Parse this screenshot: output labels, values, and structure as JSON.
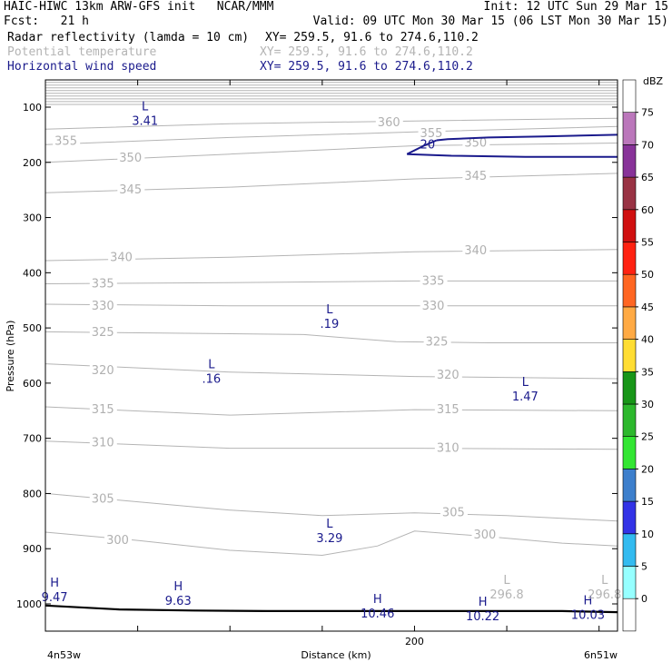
{
  "header": {
    "model": "HAIC-HIWC 13km ARW-GFS init   NCAR/MMM",
    "init": "Init: 12 UTC Sun 29 Mar 15",
    "fcst": "Fcst:   21 h",
    "valid": "Valid: 09 UTC Mon 30 Mar 15 (06 LST Mon 30 Mar 15)",
    "fields": [
      {
        "name": "Radar reflectivity (lamda = 10 cm)",
        "xy": "XY= 259.5, 91.6 to 274.6,110.2",
        "color": "#000000"
      },
      {
        "name": "Potential temperature",
        "xy": "XY= 259.5, 91.6 to 274.6,110.2",
        "color": "#b4b4b4"
      },
      {
        "name": "Horizontal wind speed",
        "xy": "XY= 259.5, 91.6 to 274.6,110.2",
        "color": "#1a1a8c"
      }
    ]
  },
  "chart_data": {
    "type": "cross-section",
    "xlabel": "Distance (km)",
    "ylabel": "Pressure (hPa)",
    "x_left_label": "4n53w",
    "x_right_label": "6n51w",
    "x_range_km": [
      0,
      310
    ],
    "x_ticks": [
      0,
      50,
      100,
      150,
      200,
      250,
      300
    ],
    "x_tick_labels": [
      {
        "x": 200,
        "label": "200"
      }
    ],
    "y_range_hPa": [
      50,
      1050
    ],
    "y_ticks": [
      100,
      200,
      300,
      400,
      500,
      600,
      700,
      800,
      900,
      1000
    ],
    "colorbar": {
      "unit": "dBZ",
      "levels": [
        0,
        5,
        10,
        15,
        20,
        25,
        30,
        35,
        40,
        45,
        50,
        55,
        60,
        65,
        70,
        75
      ],
      "colors": [
        "#ffffff",
        "#96ffff",
        "#33bbf0",
        "#3333e6",
        "#3d7fcc",
        "#33e633",
        "#2db82d",
        "#189618",
        "#ffdd33",
        "#ffaa44",
        "#ff6622",
        "#ff2211",
        "#d01010",
        "#993344",
        "#883399",
        "#bb77bb",
        "#ffffff"
      ]
    },
    "theta_contours": [
      {
        "value": 300,
        "points": [
          [
            0,
            870
          ],
          [
            50,
            885
          ],
          [
            100,
            903
          ],
          [
            150,
            912
          ],
          [
            180,
            895
          ],
          [
            200,
            868
          ],
          [
            240,
            878
          ],
          [
            280,
            890
          ],
          [
            310,
            895
          ]
        ],
        "labels": [
          {
            "x": 33,
            "p": 885
          },
          {
            "x": 232,
            "p": 875
          }
        ]
      },
      {
        "value": 305,
        "points": [
          [
            0,
            800
          ],
          [
            100,
            830
          ],
          [
            150,
            840
          ],
          [
            200,
            835
          ],
          [
            250,
            840
          ],
          [
            310,
            850
          ]
        ],
        "labels": [
          {
            "x": 25,
            "p": 810
          },
          {
            "x": 215,
            "p": 835
          }
        ]
      },
      {
        "value": 310,
        "points": [
          [
            0,
            705
          ],
          [
            100,
            718
          ],
          [
            200,
            718
          ],
          [
            310,
            720
          ]
        ],
        "labels": [
          {
            "x": 25,
            "p": 708
          },
          {
            "x": 212,
            "p": 718
          }
        ]
      },
      {
        "value": 315,
        "points": [
          [
            0,
            643
          ],
          [
            100,
            658
          ],
          [
            200,
            648
          ],
          [
            310,
            650
          ]
        ],
        "labels": [
          {
            "x": 25,
            "p": 648
          },
          {
            "x": 212,
            "p": 648
          }
        ]
      },
      {
        "value": 320,
        "points": [
          [
            0,
            565
          ],
          [
            100,
            580
          ],
          [
            200,
            588
          ],
          [
            310,
            592
          ]
        ],
        "labels": [
          {
            "x": 25,
            "p": 577
          },
          {
            "x": 212,
            "p": 585
          }
        ]
      },
      {
        "value": 325,
        "points": [
          [
            0,
            507
          ],
          [
            140,
            512
          ],
          [
            190,
            525
          ],
          [
            240,
            527
          ],
          [
            310,
            527
          ]
        ],
        "labels": [
          {
            "x": 25,
            "p": 508
          },
          {
            "x": 206,
            "p": 525
          }
        ]
      },
      {
        "value": 330,
        "points": [
          [
            0,
            457
          ],
          [
            100,
            460
          ],
          [
            200,
            460
          ],
          [
            310,
            460
          ]
        ],
        "labels": [
          {
            "x": 25,
            "p": 460
          },
          {
            "x": 204,
            "p": 460
          }
        ]
      },
      {
        "value": 335,
        "points": [
          [
            0,
            420
          ],
          [
            100,
            418
          ],
          [
            200,
            415
          ],
          [
            310,
            415
          ]
        ],
        "labels": [
          {
            "x": 25,
            "p": 420
          },
          {
            "x": 204,
            "p": 415
          }
        ]
      },
      {
        "value": 340,
        "points": [
          [
            0,
            378
          ],
          [
            100,
            372
          ],
          [
            200,
            362
          ],
          [
            310,
            358
          ]
        ],
        "labels": [
          {
            "x": 35,
            "p": 372
          },
          {
            "x": 227,
            "p": 360
          }
        ]
      },
      {
        "value": 345,
        "points": [
          [
            0,
            255
          ],
          [
            100,
            245
          ],
          [
            200,
            230
          ],
          [
            310,
            220
          ]
        ],
        "labels": [
          {
            "x": 40,
            "p": 250
          },
          {
            "x": 227,
            "p": 225
          }
        ]
      },
      {
        "value": 350,
        "points": [
          [
            0,
            200
          ],
          [
            100,
            185
          ],
          [
            200,
            170
          ],
          [
            310,
            165
          ]
        ],
        "labels": [
          {
            "x": 40,
            "p": 192
          },
          {
            "x": 227,
            "p": 165
          }
        ]
      },
      {
        "value": 355,
        "points": [
          [
            0,
            168
          ],
          [
            100,
            155
          ],
          [
            200,
            145
          ],
          [
            310,
            135
          ]
        ],
        "labels": [
          {
            "x": 5,
            "p": 162
          },
          {
            "x": 203,
            "p": 148
          }
        ]
      },
      {
        "value": 360,
        "points": [
          [
            0,
            140
          ],
          [
            100,
            130
          ],
          [
            200,
            125
          ],
          [
            310,
            120
          ]
        ],
        "labels": [
          {
            "x": 180,
            "p": 128
          }
        ]
      }
    ],
    "theta_tight_levels_top": [
      55,
      60,
      65,
      70,
      75,
      80,
      85,
      90,
      95
    ],
    "wind_contours": [
      {
        "value": 20,
        "points": [
          [
            212,
            160
          ],
          [
            218,
            158
          ],
          [
            240,
            155
          ],
          [
            270,
            153
          ],
          [
            310,
            150
          ]
        ],
        "label": {
          "x": 203,
          "p": 168
        }
      },
      {
        "value": 20,
        "points": [
          [
            212,
            160
          ],
          [
            205,
            170
          ],
          [
            196,
            185
          ],
          [
            220,
            188
          ],
          [
            260,
            190
          ],
          [
            310,
            190
          ]
        ]
      }
    ],
    "terrain": {
      "points": [
        [
          0,
          1003
        ],
        [
          40,
          1010
        ],
        [
          80,
          1012
        ],
        [
          120,
          1013
        ],
        [
          160,
          1013
        ],
        [
          200,
          1013
        ],
        [
          240,
          1013
        ],
        [
          280,
          1013
        ],
        [
          310,
          1015
        ]
      ]
    },
    "extrema": [
      {
        "type": "L",
        "value": "3.41",
        "x": 52,
        "p": 112,
        "color": "#1a1a8c"
      },
      {
        "type": "L",
        "value": ".19",
        "x": 152,
        "p": 480,
        "color": "#1a1a8c"
      },
      {
        "type": "L",
        "value": ".16",
        "x": 88,
        "p": 580,
        "color": "#1a1a8c"
      },
      {
        "type": "L",
        "value": "1.47",
        "x": 258,
        "p": 612,
        "color": "#1a1a8c"
      },
      {
        "type": "L",
        "value": "3.29",
        "x": 152,
        "p": 868,
        "color": "#1a1a8c"
      },
      {
        "type": "H",
        "value": "9.47",
        "x": 3,
        "p": 975,
        "color": "#1a1a8c"
      },
      {
        "type": "H",
        "value": "9.63",
        "x": 70,
        "p": 982,
        "color": "#1a1a8c"
      },
      {
        "type": "H",
        "value": "10.46",
        "x": 178,
        "p": 1005,
        "color": "#1a1a8c"
      },
      {
        "type": "H",
        "value": "10.22",
        "x": 235,
        "p": 1010,
        "color": "#1a1a8c"
      },
      {
        "type": "H",
        "value": "10.03",
        "x": 292,
        "p": 1007,
        "color": "#1a1a8c"
      },
      {
        "type": "L",
        "value": "296.8",
        "x": 248,
        "p": 970,
        "color": "#b4b4b4"
      },
      {
        "type": "L",
        "value": "296.8",
        "x": 301,
        "p": 970,
        "color": "#b4b4b4"
      }
    ]
  }
}
